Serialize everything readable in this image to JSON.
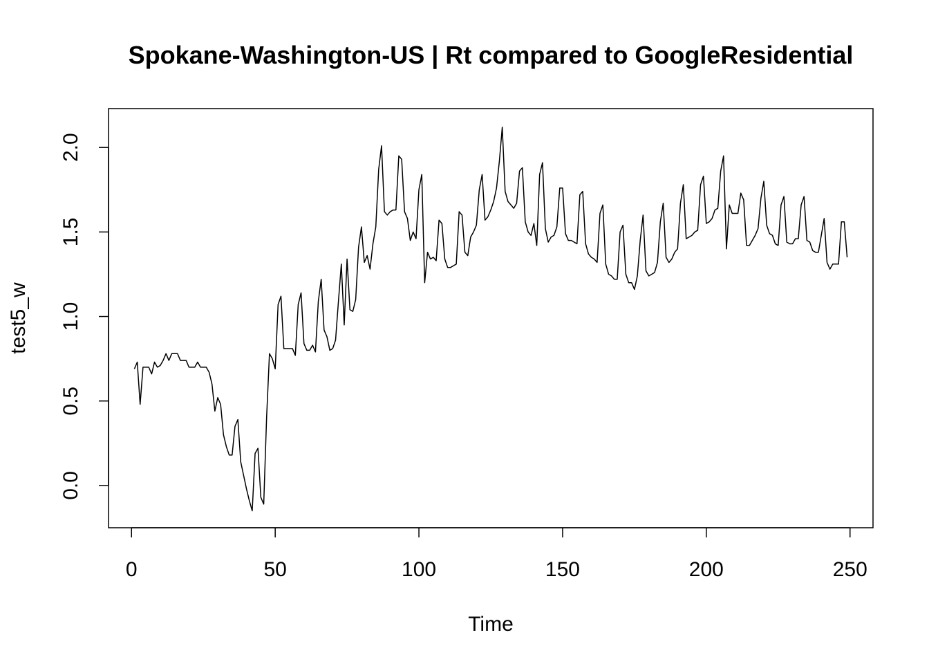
{
  "chart_data": {
    "type": "line",
    "title": "Spokane-Washington-US | Rt compared to GoogleResidential",
    "xlabel": "Time",
    "ylabel": "test5_w",
    "xlim": [
      -8,
      258
    ],
    "ylim": [
      -0.25,
      2.23
    ],
    "x_ticks": [
      0,
      50,
      100,
      150,
      200,
      250
    ],
    "x_tick_labels": [
      "0",
      "50",
      "100",
      "150",
      "200",
      "250"
    ],
    "y_ticks": [
      0.0,
      0.5,
      1.0,
      1.5,
      2.0
    ],
    "y_tick_labels": [
      "0.0",
      "0.5",
      "1.0",
      "1.5",
      "2.0"
    ],
    "grid": false,
    "legend": "none",
    "color": "#000000",
    "x_start": 1,
    "values": [
      0.69,
      0.73,
      0.48,
      0.7,
      0.7,
      0.7,
      0.66,
      0.73,
      0.7,
      0.71,
      0.74,
      0.78,
      0.74,
      0.78,
      0.78,
      0.78,
      0.74,
      0.74,
      0.74,
      0.7,
      0.7,
      0.7,
      0.73,
      0.7,
      0.7,
      0.7,
      0.67,
      0.6,
      0.44,
      0.52,
      0.48,
      0.3,
      0.23,
      0.18,
      0.18,
      0.35,
      0.39,
      0.14,
      0.06,
      -0.02,
      -0.09,
      -0.15,
      0.19,
      0.22,
      -0.07,
      -0.11,
      0.4,
      0.78,
      0.75,
      0.69,
      1.07,
      1.12,
      0.81,
      0.81,
      0.81,
      0.81,
      0.77,
      1.07,
      1.14,
      0.84,
      0.8,
      0.8,
      0.83,
      0.79,
      1.09,
      1.22,
      0.92,
      0.88,
      0.8,
      0.81,
      0.86,
      1.09,
      1.31,
      0.95,
      1.34,
      1.04,
      1.03,
      1.1,
      1.41,
      1.53,
      1.32,
      1.36,
      1.28,
      1.43,
      1.53,
      1.87,
      2.01,
      1.62,
      1.6,
      1.62,
      1.63,
      1.63,
      1.95,
      1.93,
      1.62,
      1.58,
      1.45,
      1.5,
      1.46,
      1.75,
      1.84,
      1.2,
      1.38,
      1.34,
      1.35,
      1.33,
      1.57,
      1.55,
      1.34,
      1.29,
      1.29,
      1.3,
      1.31,
      1.62,
      1.6,
      1.38,
      1.36,
      1.47,
      1.5,
      1.54,
      1.75,
      1.84,
      1.57,
      1.59,
      1.63,
      1.68,
      1.76,
      1.92,
      2.12,
      1.74,
      1.68,
      1.66,
      1.64,
      1.67,
      1.86,
      1.88,
      1.56,
      1.5,
      1.48,
      1.55,
      1.42,
      1.84,
      1.91,
      1.52,
      1.44,
      1.47,
      1.48,
      1.53,
      1.76,
      1.76,
      1.49,
      1.45,
      1.45,
      1.44,
      1.43,
      1.72,
      1.74,
      1.43,
      1.37,
      1.35,
      1.34,
      1.32,
      1.61,
      1.66,
      1.31,
      1.25,
      1.24,
      1.22,
      1.22,
      1.5,
      1.54,
      1.25,
      1.2,
      1.2,
      1.16,
      1.24,
      1.45,
      1.6,
      1.27,
      1.24,
      1.25,
      1.26,
      1.32,
      1.56,
      1.67,
      1.35,
      1.32,
      1.34,
      1.38,
      1.4,
      1.67,
      1.78,
      1.46,
      1.47,
      1.48,
      1.5,
      1.51,
      1.78,
      1.83,
      1.55,
      1.56,
      1.58,
      1.63,
      1.64,
      1.86,
      1.95,
      1.4,
      1.66,
      1.61,
      1.61,
      1.61,
      1.73,
      1.69,
      1.42,
      1.42,
      1.45,
      1.48,
      1.52,
      1.7,
      1.8,
      1.54,
      1.49,
      1.48,
      1.43,
      1.42,
      1.66,
      1.71,
      1.44,
      1.43,
      1.43,
      1.46,
      1.46,
      1.66,
      1.71,
      1.45,
      1.44,
      1.39,
      1.38,
      1.38,
      1.48,
      1.58,
      1.32,
      1.28,
      1.31,
      1.31,
      1.31,
      1.56,
      1.56,
      1.35
    ]
  }
}
